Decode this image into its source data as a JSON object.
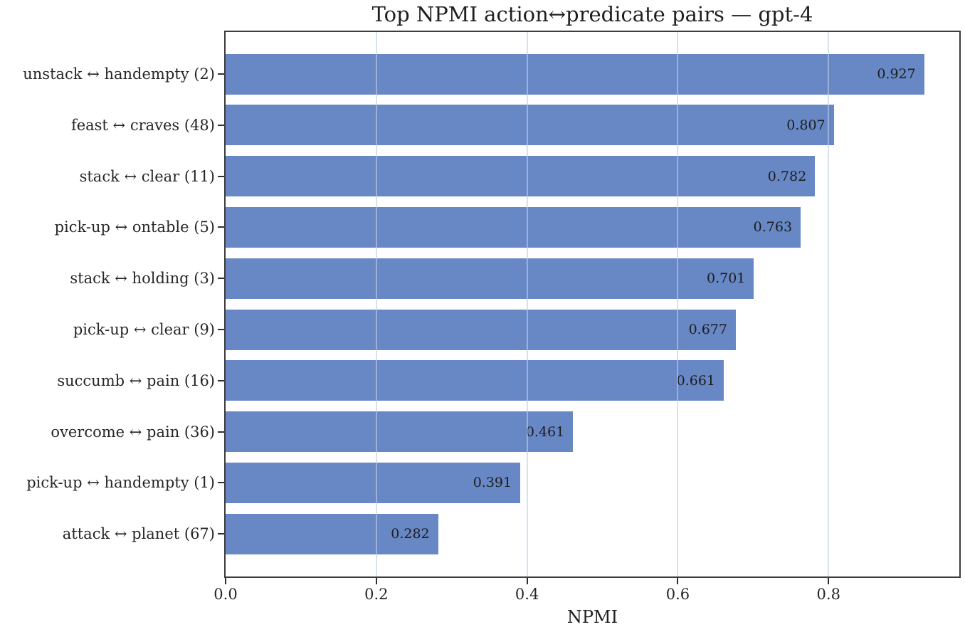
{
  "chart_data": {
    "type": "bar",
    "orientation": "horizontal",
    "title": "Top NPMI action↔predicate pairs — gpt-4",
    "xlabel": "NPMI",
    "ylabel": "",
    "categories": [
      "unstack ↔ handempty (2)",
      "feast ↔ craves (48)",
      "stack ↔ clear (11)",
      "pick-up ↔ ontable (5)",
      "stack ↔ holding (3)",
      "pick-up ↔ clear (9)",
      "succumb ↔ pain (16)",
      "overcome ↔ pain (36)",
      "pick-up ↔ handempty (1)",
      "attack ↔ planet (67)"
    ],
    "values": [
      0.927,
      0.807,
      0.782,
      0.763,
      0.701,
      0.677,
      0.661,
      0.461,
      0.391,
      0.282
    ],
    "value_labels": [
      "0.927",
      "0.807",
      "0.782",
      "0.763",
      "0.701",
      "0.677",
      "0.661",
      "0.461",
      "0.391",
      "0.282"
    ],
    "xlim": [
      0,
      0.9735
    ],
    "xticks": [
      0.0,
      0.2,
      0.4,
      0.6,
      0.8
    ],
    "xtick_labels": [
      "0.0",
      "0.2",
      "0.4",
      "0.6",
      "0.8"
    ],
    "grid": true,
    "legend_position": "none",
    "colors": {
      "bar": "#6888c5",
      "gridline": "rgba(190,205,228,0.6)",
      "spine": "#3d3d3d",
      "text": "#262626",
      "background": "#ffffff"
    }
  }
}
